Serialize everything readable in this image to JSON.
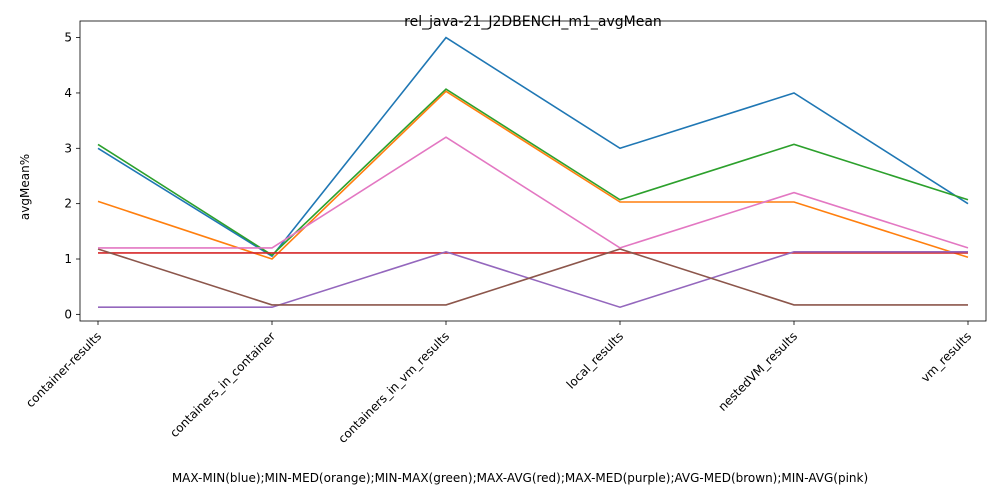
{
  "chart_data": {
    "type": "line",
    "title": "rel_java-21_J2DBENCH_m1_avgMean",
    "xlabel": "MAX-MIN(blue);MIN-MED(orange);MIN-MAX(green);MAX-AVG(red);MAX-MED(purple);AVG-MED(brown);MIN-AVG(pink)",
    "ylabel": "avgMean%",
    "categories": [
      "container-results",
      "containers_in_container",
      "containers_in_vm_results",
      "local_results",
      "nestedVM_results",
      "vm_results"
    ],
    "yticks": [
      "0",
      "1",
      "2",
      "3",
      "4",
      "5"
    ],
    "ylim": [
      -0.12,
      5.3
    ],
    "grid": false,
    "series": [
      {
        "color": "#1f77b4",
        "values": [
          3.0,
          1.05,
          5.0,
          3.0,
          4.0,
          2.0
        ]
      },
      {
        "color": "#ff7f0e",
        "values": [
          2.04,
          1.0,
          4.03,
          2.03,
          2.03,
          1.03
        ]
      },
      {
        "color": "#2ca02c",
        "values": [
          3.07,
          1.07,
          4.07,
          2.07,
          3.07,
          2.07
        ]
      },
      {
        "color": "#d62728",
        "values": [
          1.11,
          1.11,
          1.11,
          1.11,
          1.11,
          1.11
        ]
      },
      {
        "color": "#9467bd",
        "values": [
          0.13,
          0.13,
          1.13,
          0.13,
          1.13,
          1.13
        ]
      },
      {
        "color": "#8c564b",
        "values": [
          1.18,
          0.17,
          0.17,
          1.18,
          0.17,
          0.17
        ]
      },
      {
        "color": "#e377c2",
        "values": [
          1.2,
          1.2,
          3.2,
          1.2,
          2.2,
          1.2
        ]
      }
    ]
  }
}
